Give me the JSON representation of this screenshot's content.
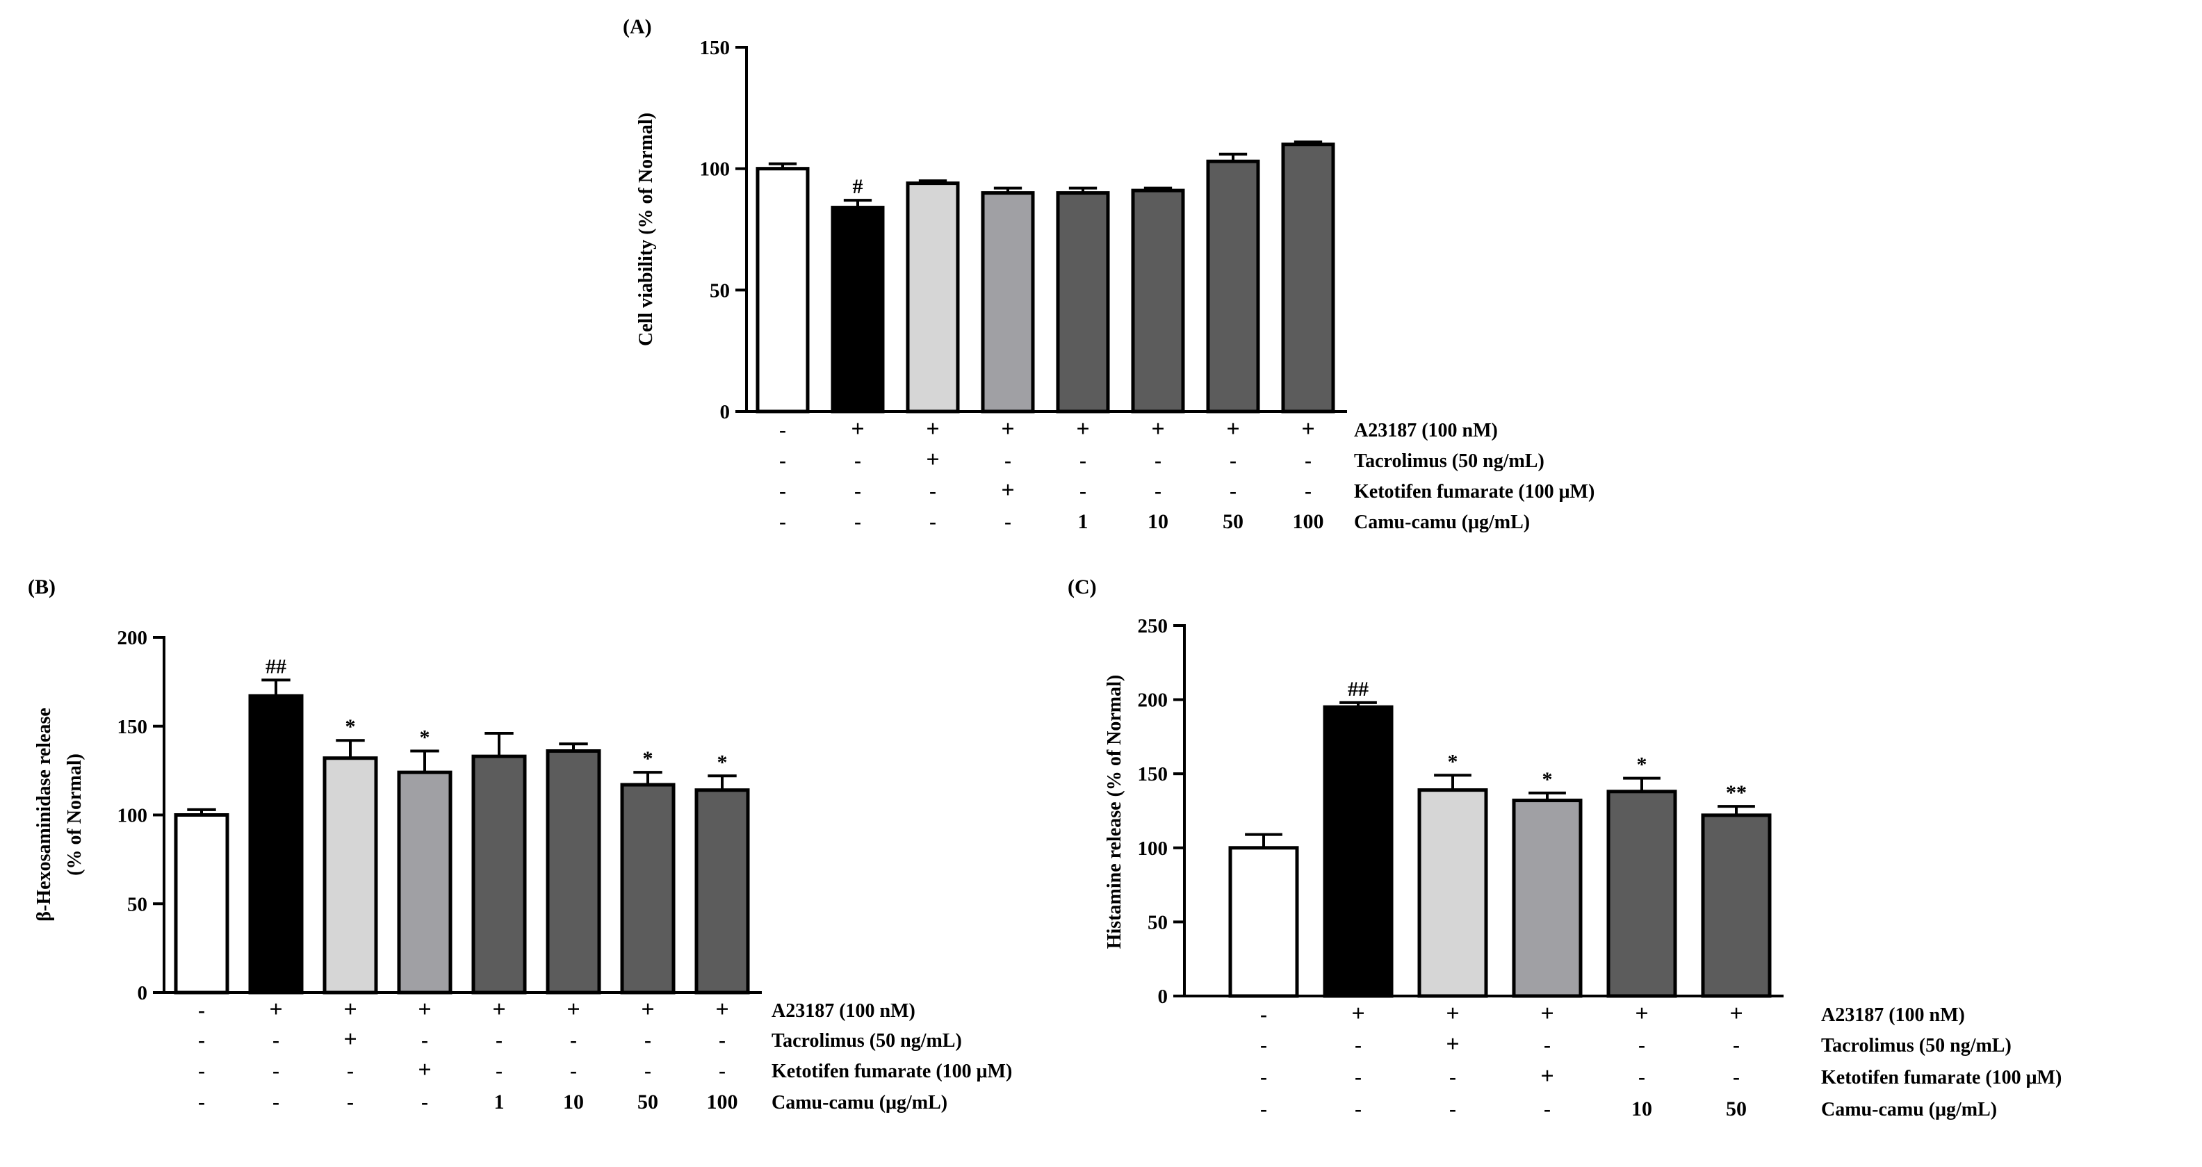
{
  "colors": {
    "normal": "#ffffff",
    "control": "#000000",
    "tacrolimus": "#d6d6d6",
    "ketotifen": "#a0a0a4",
    "camu": "#5c5c5c",
    "stroke": "#000000"
  },
  "chart_data": [
    {
      "panel_label": "(A)",
      "type": "bar",
      "ylabel": "Cell viability (% of Normal)",
      "ylim": [
        0,
        150
      ],
      "yticks": [
        "0",
        "50",
        "100",
        "150"
      ],
      "ytick_values": [
        0,
        50,
        100,
        150
      ],
      "values": [
        100,
        84,
        94,
        90,
        90,
        91,
        103,
        110
      ],
      "errors": [
        2,
        3,
        1,
        2,
        2,
        1,
        3,
        1
      ],
      "annotations": [
        "",
        "#",
        "",
        "",
        "",
        "",
        "",
        ""
      ],
      "fills": [
        "normal",
        "control",
        "tacrolimus",
        "ketotifen",
        "camu",
        "camu",
        "camu",
        "camu"
      ],
      "treatment_rows": [
        {
          "label": "A23187 (100 nM)",
          "cells": [
            "-",
            "+",
            "+",
            "+",
            "+",
            "+",
            "+",
            "+"
          ]
        },
        {
          "label": "Tacrolimus (50 ng/mL)",
          "cells": [
            "-",
            "-",
            "+",
            "-",
            "-",
            "-",
            "-",
            "-"
          ]
        },
        {
          "label": "Ketotifen fumarate (100 μM)",
          "cells": [
            "-",
            "-",
            "-",
            "+",
            "-",
            "-",
            "-",
            "-"
          ]
        },
        {
          "label": "Camu-camu (μg/mL)",
          "cells": [
            "-",
            "-",
            "-",
            "-",
            "1",
            "10",
            "50",
            "100"
          ]
        }
      ]
    },
    {
      "panel_label": "(B)",
      "type": "bar",
      "ylabel": "β-Hexosaminidase release",
      "ylabel2": "(% of Normal)",
      "ylim": [
        0,
        200
      ],
      "yticks": [
        "0",
        "50",
        "100",
        "150",
        "200"
      ],
      "ytick_values": [
        0,
        50,
        100,
        150,
        200
      ],
      "values": [
        100,
        167,
        132,
        124,
        133,
        136,
        117,
        114
      ],
      "errors": [
        3,
        9,
        10,
        12,
        13,
        4,
        7,
        8
      ],
      "annotations": [
        "",
        "##",
        "*",
        "*",
        "",
        "",
        "*",
        "*"
      ],
      "fills": [
        "normal",
        "control",
        "tacrolimus",
        "ketotifen",
        "camu",
        "camu",
        "camu",
        "camu"
      ],
      "treatment_rows": [
        {
          "label": "A23187 (100 nM)",
          "cells": [
            "-",
            "+",
            "+",
            "+",
            "+",
            "+",
            "+",
            "+"
          ]
        },
        {
          "label": "Tacrolimus (50 ng/mL)",
          "cells": [
            "-",
            "-",
            "+",
            "-",
            "-",
            "-",
            "-",
            "-"
          ]
        },
        {
          "label": "Ketotifen fumarate (100 μM)",
          "cells": [
            "-",
            "-",
            "-",
            "+",
            "-",
            "-",
            "-",
            "-"
          ]
        },
        {
          "label": "Camu-camu (μg/mL)",
          "cells": [
            "-",
            "-",
            "-",
            "-",
            "1",
            "10",
            "50",
            "100"
          ]
        }
      ]
    },
    {
      "panel_label": "(C)",
      "type": "bar",
      "ylabel": "Histamine release (% of Normal)",
      "ylim": [
        0,
        250
      ],
      "yticks": [
        "0",
        "50",
        "100",
        "150",
        "200",
        "250"
      ],
      "ytick_values": [
        0,
        50,
        100,
        150,
        200,
        250
      ],
      "values": [
        100,
        195,
        139,
        132,
        138,
        122
      ],
      "errors": [
        9,
        3,
        10,
        5,
        9,
        6
      ],
      "annotations": [
        "",
        "##",
        "*",
        "*",
        "*",
        "**"
      ],
      "fills": [
        "normal",
        "control",
        "tacrolimus",
        "ketotifen",
        "camu",
        "camu"
      ],
      "treatment_rows": [
        {
          "label": "A23187 (100 nM)",
          "cells": [
            "-",
            "+",
            "+",
            "+",
            "+",
            "+"
          ]
        },
        {
          "label": "Tacrolimus (50 ng/mL)",
          "cells": [
            "-",
            "-",
            "+",
            "-",
            "-",
            "-"
          ]
        },
        {
          "label": "Ketotifen fumarate (100 μM)",
          "cells": [
            "-",
            "-",
            "-",
            "+",
            "-",
            "-"
          ]
        },
        {
          "label": "Camu-camu (μg/mL)",
          "cells": [
            "-",
            "-",
            "-",
            "-",
            "10",
            "50"
          ]
        }
      ]
    }
  ]
}
